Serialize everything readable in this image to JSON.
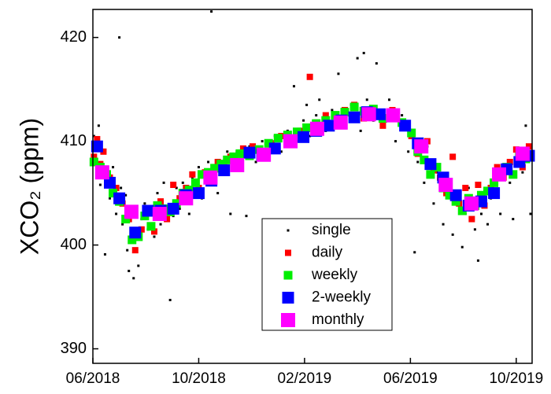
{
  "chart_data": {
    "type": "scatter",
    "y_label": "XCO₂ (ppm)",
    "xlim": [
      2018.4167,
      2019.8
    ],
    "xticks": [
      {
        "value": 2018.4167,
        "label": "06/2018"
      },
      {
        "value": 2018.75,
        "label": "10/2018"
      },
      {
        "value": 2019.0833,
        "label": "02/2019"
      },
      {
        "value": 2019.4167,
        "label": "06/2019"
      },
      {
        "value": 2019.75,
        "label": "10/2019"
      }
    ],
    "ylim": [
      388.6,
      422.7
    ],
    "yticks": [
      390,
      400,
      410,
      420
    ],
    "series": [
      {
        "name": "single",
        "color": "#000000",
        "x": [
          2018.42,
          2018.425,
          2018.43,
          2018.435,
          2018.44,
          2018.445,
          2018.45,
          2018.455,
          2018.46,
          2018.47,
          2018.48,
          2018.49,
          2018.5,
          2018.505,
          2018.51,
          2018.52,
          2018.525,
          2018.53,
          2018.54,
          2018.545,
          2018.55,
          2018.56,
          2018.57,
          2018.58,
          2018.59,
          2018.6,
          2018.61,
          2018.62,
          2018.63,
          2018.64,
          2018.65,
          2018.66,
          2018.67,
          2018.68,
          2018.69,
          2018.7,
          2018.71,
          2018.72,
          2018.73,
          2018.74,
          2018.75,
          2018.76,
          2018.77,
          2018.78,
          2018.79,
          2018.8,
          2018.81,
          2018.82,
          2018.83,
          2018.84,
          2018.85,
          2018.86,
          2018.87,
          2018.88,
          2018.9,
          2018.91,
          2018.93,
          2018.95,
          2018.97,
          2018.99,
          2019.01,
          2019.03,
          2019.05,
          2019.06,
          2019.08,
          2019.09,
          2019.1,
          2019.12,
          2019.13,
          2019.15,
          2019.17,
          2019.19,
          2019.21,
          2019.23,
          2019.25,
          2019.26,
          2019.27,
          2019.28,
          2019.3,
          2019.31,
          2019.33,
          2019.35,
          2019.37,
          2019.39,
          2019.41,
          2019.42,
          2019.43,
          2019.44,
          2019.46,
          2019.47,
          2019.49,
          2019.5,
          2019.52,
          2019.53,
          2019.55,
          2019.56,
          2019.58,
          2019.59,
          2019.6,
          2019.62,
          2019.63,
          2019.64,
          2019.66,
          2019.67,
          2019.68,
          2019.7,
          2019.71,
          2019.73,
          2019.74,
          2019.76,
          2019.77,
          2019.78,
          2019.79,
          2019.795
        ],
        "values": [
          410.5,
          408,
          407.2,
          411.5,
          405.8,
          409,
          407.5,
          399.1,
          406,
          404.5,
          407.5,
          403,
          420,
          405.5,
          402,
          404.8,
          399.5,
          397.5,
          401,
          396.8,
          400.5,
          398,
          402.5,
          404,
          401.5,
          403.5,
          400.8,
          405,
          402,
          406,
          403,
          394.7,
          402.8,
          405.5,
          403.5,
          406,
          404,
          403,
          406.5,
          405,
          407.5,
          404.5,
          406,
          408,
          422.5,
          406.5,
          405,
          408,
          407,
          409,
          403,
          407.5,
          409,
          408,
          402.8,
          409.5,
          408,
          410,
          408.5,
          410.5,
          409,
          411,
          415.3,
          410,
          412,
          413.5,
          410.5,
          412.5,
          414,
          411,
          413,
          416.5,
          411.5,
          413.5,
          418,
          411,
          418.5,
          414,
          412,
          417.5,
          411.5,
          414,
          410,
          412.5,
          409,
          411,
          399.3,
          408,
          406,
          409.5,
          404,
          407,
          402,
          405.5,
          401,
          404,
          399.8,
          403,
          405.5,
          401.5,
          398.5,
          403,
          402,
          404.5,
          406.5,
          403,
          407.5,
          406,
          402.5,
          409,
          407,
          411.5,
          408,
          403
        ]
      },
      {
        "name": "daily",
        "color": "#ff0000",
        "x": [
          2018.42,
          2018.43,
          2018.44,
          2018.45,
          2018.47,
          2018.49,
          2018.51,
          2018.53,
          2018.55,
          2018.57,
          2018.59,
          2018.61,
          2018.63,
          2018.65,
          2018.67,
          2018.69,
          2018.71,
          2018.73,
          2018.75,
          2018.77,
          2018.79,
          2018.81,
          2018.83,
          2018.85,
          2018.87,
          2018.89,
          2018.92,
          2018.95,
          2018.98,
          2019.01,
          2019.04,
          2019.07,
          2019.1,
          2019.12,
          2019.15,
          2019.18,
          2019.21,
          2019.24,
          2019.27,
          2019.3,
          2019.33,
          2019.36,
          2019.39,
          2019.42,
          2019.44,
          2019.47,
          2019.49,
          2019.51,
          2019.53,
          2019.55,
          2019.57,
          2019.59,
          2019.61,
          2019.63,
          2019.65,
          2019.67,
          2019.69,
          2019.71,
          2019.73,
          2019.75,
          2019.77,
          2019.79
        ],
        "values": [
          408.5,
          410.2,
          407.8,
          409,
          406.5,
          405.5,
          404,
          402.5,
          399.5,
          401.5,
          403.5,
          401.3,
          404.2,
          402.5,
          405.8,
          404.5,
          405.5,
          406.8,
          405.5,
          407,
          406.5,
          408,
          407.5,
          408.5,
          407.8,
          409.3,
          409.5,
          408.5,
          409.8,
          410.5,
          409.8,
          411,
          416.2,
          411.8,
          412.5,
          411.5,
          413,
          413.5,
          412.2,
          412.8,
          411.5,
          413,
          411.8,
          410.5,
          408.8,
          410,
          407.2,
          406.5,
          405,
          408.5,
          404,
          405.5,
          402.5,
          405.8,
          403.8,
          405.5,
          407.5,
          406.5,
          408,
          409.2,
          407.5,
          409.5
        ]
      },
      {
        "name": "weekly",
        "color": "#00ee00",
        "x": [
          2018.42,
          2018.44,
          2018.46,
          2018.48,
          2018.5,
          2018.52,
          2018.54,
          2018.56,
          2018.58,
          2018.6,
          2018.62,
          2018.64,
          2018.66,
          2018.68,
          2018.7,
          2018.72,
          2018.74,
          2018.76,
          2018.78,
          2018.8,
          2018.82,
          2018.84,
          2018.86,
          2018.88,
          2018.91,
          2018.94,
          2018.97,
          2019,
          2019.03,
          2019.06,
          2019.09,
          2019.12,
          2019.15,
          2019.18,
          2019.21,
          2019.24,
          2019.27,
          2019.3,
          2019.33,
          2019.36,
          2019.39,
          2019.42,
          2019.44,
          2019.46,
          2019.48,
          2019.5,
          2019.52,
          2019.54,
          2019.56,
          2019.58,
          2019.6,
          2019.62,
          2019.64,
          2019.66,
          2019.68,
          2019.7,
          2019.72,
          2019.74,
          2019.76,
          2019.78
        ],
        "values": [
          408,
          407.5,
          406.8,
          405,
          404.2,
          402.5,
          400.5,
          400.8,
          402.8,
          401.8,
          403.8,
          403.5,
          403.2,
          404,
          405,
          405.3,
          406,
          406.8,
          407,
          407.4,
          407.8,
          408.2,
          408.5,
          408.8,
          408.6,
          409.2,
          409.8,
          410.3,
          410.6,
          410.9,
          411.3,
          411.7,
          412,
          412.5,
          412.8,
          413.3,
          412.9,
          413.1,
          412.2,
          412.5,
          411.8,
          410.8,
          409,
          408.2,
          406.8,
          407.5,
          405.5,
          404.8,
          404.2,
          403.3,
          404.5,
          403.8,
          404.8,
          405.2,
          406,
          406.8,
          407.5,
          406.8,
          408.5,
          408.3
        ]
      },
      {
        "name": "2-weekly",
        "color": "#0000ff",
        "x": [
          2018.43,
          2018.47,
          2018.5,
          2018.55,
          2018.59,
          2018.63,
          2018.67,
          2018.71,
          2018.75,
          2018.79,
          2018.83,
          2018.87,
          2018.91,
          2018.95,
          2018.99,
          2019.04,
          2019.08,
          2019.12,
          2019.16,
          2019.2,
          2019.24,
          2019.28,
          2019.32,
          2019.36,
          2019.4,
          2019.44,
          2019.48,
          2019.52,
          2019.56,
          2019.6,
          2019.64,
          2019.68,
          2019.72,
          2019.76,
          2019.79
        ],
        "values": [
          409.5,
          406,
          404.5,
          401.2,
          403.3,
          403.3,
          403.5,
          404.8,
          405,
          406.2,
          407.2,
          407.8,
          408.9,
          408.7,
          409.3,
          410,
          410.4,
          411,
          411.5,
          412,
          412.3,
          412.8,
          412.6,
          412.4,
          411.5,
          409.8,
          407.8,
          406.5,
          404.8,
          403.8,
          404.2,
          405,
          407.3,
          408,
          408.6
        ]
      },
      {
        "name": "monthly",
        "color": "#ff00ff",
        "x": [
          2018.446,
          2018.538,
          2018.627,
          2018.71,
          2018.787,
          2018.871,
          2018.955,
          2019.039,
          2019.123,
          2019.197,
          2019.286,
          2019.362,
          2019.451,
          2019.528,
          2019.609,
          2019.696,
          2019.77
        ],
        "values": [
          407,
          403.2,
          403,
          404.5,
          406.5,
          407.7,
          408.7,
          410,
          411.2,
          411.8,
          412.6,
          412.5,
          409.5,
          405.8,
          404,
          406.8,
          408.8
        ]
      }
    ]
  }
}
